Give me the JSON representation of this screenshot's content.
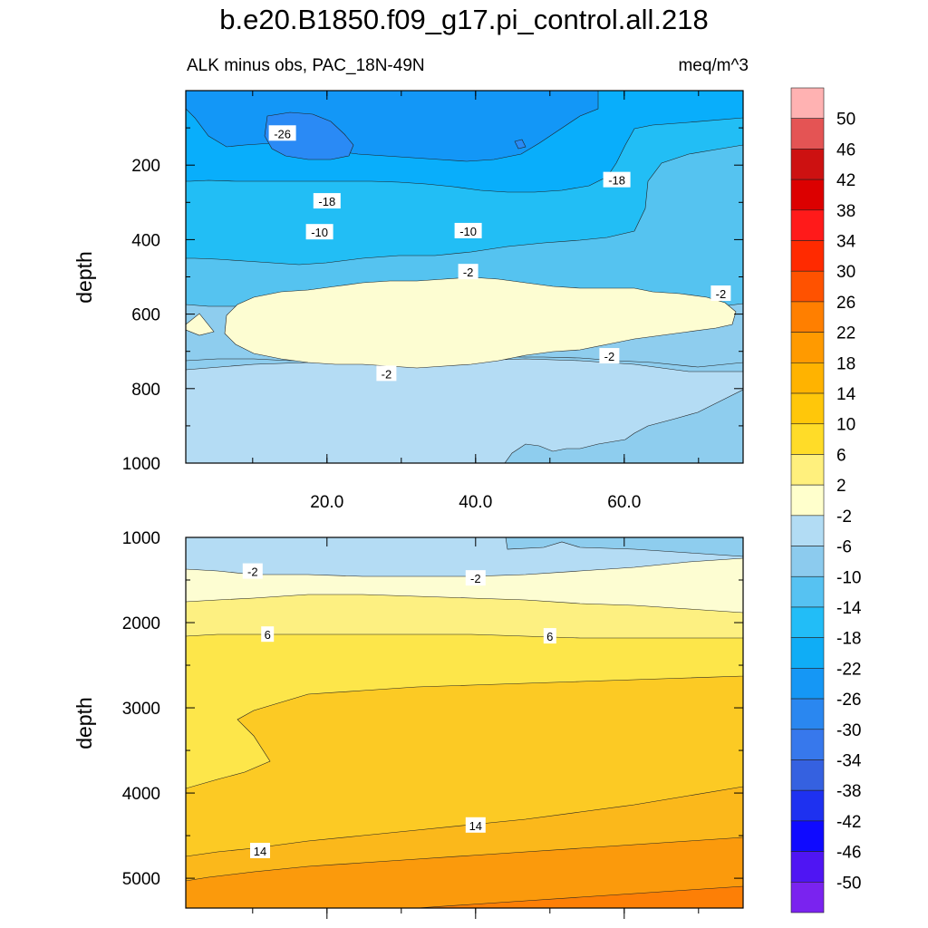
{
  "title": "b.e20.B1850.f09_g17.pi_control.all.218",
  "subtitle_left": "ALK minus obs, PAC_18N-49N",
  "subtitle_right": "meq/m^3",
  "chart_data": [
    {
      "type": "contour",
      "panel": "upper",
      "ylabel": "depth",
      "y_axis": "depth, reversed",
      "ylim": [
        0,
        1000
      ],
      "yticks": [
        "200",
        "400",
        "600",
        "800",
        "1000"
      ],
      "xlim": [
        1,
        76
      ],
      "xticks": [
        "20.0",
        "40.0",
        "60.0"
      ],
      "bands_top_to_bottom": [
        {
          "range": "-30 to -26",
          "color": "#2a8af5",
          "region": "upper core 15-35 at 80-150 m"
        },
        {
          "range": "-26 to -22",
          "color": "#1397f7",
          "region": "0-260 m"
        },
        {
          "range": "-22 to -18",
          "color": "#09aefb",
          "region": "150-300 m"
        },
        {
          "range": "-18 to -14",
          "color": "#22bef5",
          "region": "250-330 m"
        },
        {
          "range": "-14 to -10",
          "color": "#55c3f0",
          "region": "300-400 m"
        },
        {
          "range": "-10 to -6",
          "color": "#8ecdee",
          "region": "380-480 m"
        },
        {
          "range": "-6 to -2",
          "color": "#b4dcf4",
          "region": "450-1000 m"
        },
        {
          "range": "-2 to 2",
          "color": "#fdfdd2",
          "region": "core 8-74 at 540-740 m"
        }
      ],
      "contour_labels": [
        {
          "text": "-26",
          "x": 14,
          "depth": 115
        },
        {
          "text": "-18",
          "x": 59,
          "depth": 240
        },
        {
          "text": "-18",
          "x": 20,
          "depth": 297
        },
        {
          "text": "-10",
          "x": 19,
          "depth": 380
        },
        {
          "text": "-10",
          "x": 39,
          "depth": 377
        },
        {
          "text": "-2",
          "x": 39,
          "depth": 487
        },
        {
          "text": "-2",
          "x": 73,
          "depth": 545
        },
        {
          "text": "-2",
          "x": 58,
          "depth": 713
        },
        {
          "text": "-2",
          "x": 28,
          "depth": 760
        }
      ]
    },
    {
      "type": "contour",
      "panel": "lower",
      "ylabel": "depth",
      "y_axis": "depth, reversed",
      "ylim": [
        1000,
        5350
      ],
      "yticks": [
        "1000",
        "2000",
        "3000",
        "4000",
        "5000"
      ],
      "xlim": [
        1,
        76
      ],
      "bands_top_to_bottom": [
        {
          "range": "-6 to -2",
          "color": "#b4dcf4",
          "region": "1000-1400 m"
        },
        {
          "range": "-2 to 2",
          "color": "#fdfdd2",
          "region": "1400-1800 m"
        },
        {
          "range": "2 to 6",
          "color": "#fdf081",
          "region": "1700-2100 m"
        },
        {
          "range": "6 to 10",
          "color": "#fde64a",
          "region": "2100-3900 m west"
        },
        {
          "range": "10 to 14",
          "color": "#fcca24",
          "region": "2700-4800 m"
        },
        {
          "range": "14 to 18",
          "color": "#fbb81b",
          "region": "4000-5200 m"
        },
        {
          "range": "18 to 22",
          "color": "#fb9a0c",
          "region": "4700-5350 m"
        },
        {
          "range": "22 to 26",
          "color": "#fd7f06",
          "region": "5100-5350 m"
        }
      ],
      "contour_labels": [
        {
          "text": "-2",
          "x": 10,
          "depth": 1400
        },
        {
          "text": "-2",
          "x": 40,
          "depth": 1480
        },
        {
          "text": "6",
          "x": 12,
          "depth": 2140
        },
        {
          "text": "6",
          "x": 50,
          "depth": 2160
        },
        {
          "text": "14",
          "x": 40,
          "depth": 4380
        },
        {
          "text": "14",
          "x": 11,
          "depth": 4680
        }
      ]
    },
    {
      "type": "colorbar",
      "levels": [
        "50",
        "46",
        "42",
        "38",
        "34",
        "30",
        "26",
        "22",
        "18",
        "14",
        "10",
        "6",
        "2",
        "-2",
        "-6",
        "-10",
        "-14",
        "-18",
        "-22",
        "-26",
        "-30",
        "-34",
        "-38",
        "-42",
        "-46",
        "-50"
      ],
      "colors_top_to_bottom": [
        "#ffb2b2",
        "#e45454",
        "#cd1111",
        "#dc0000",
        "#ff1a1a",
        "#ff2a00",
        "#ff5200",
        "#ff7f00",
        "#ff9a00",
        "#ffb300",
        "#ffc70a",
        "#ffdc28",
        "#fff07d",
        "#ffffcc",
        "#b2dcf4",
        "#8ccbee",
        "#56c2f2",
        "#22bdf7",
        "#0fadf6",
        "#1597f5",
        "#2a87f0",
        "#3778ec",
        "#3561e0",
        "#1e31f0",
        "#0f0aff",
        "#4f15f3",
        "#7a23ef"
      ]
    }
  ]
}
